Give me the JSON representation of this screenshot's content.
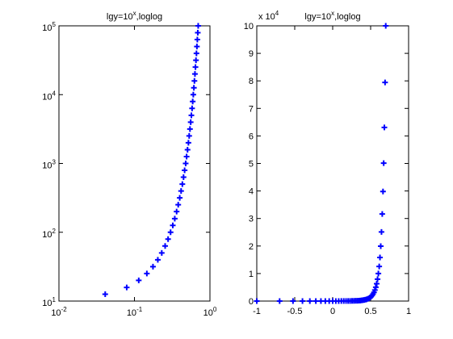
{
  "chart_data": [
    {
      "type": "scatter",
      "title": [
        "lgy=10",
        "x",
        ",loglog"
      ],
      "marker": "+",
      "color": "#0000ff",
      "xscale": "log",
      "yscale": "log",
      "x": [
        0.041,
        0.079,
        0.114,
        0.146,
        0.176,
        0.204,
        0.23,
        0.255,
        0.279,
        0.301,
        0.322,
        0.342,
        0.362,
        0.38,
        0.398,
        0.415,
        0.431,
        0.447,
        0.462,
        0.477,
        0.491,
        0.505,
        0.519,
        0.531,
        0.544,
        0.556,
        0.568,
        0.58,
        0.591,
        0.602,
        0.613,
        0.623,
        0.633,
        0.643,
        0.653,
        0.663,
        0.672,
        0.681,
        0.69,
        0.699
      ],
      "y": [
        12.6,
        15.8,
        20,
        25.1,
        31.6,
        39.8,
        50.1,
        63.1,
        79.4,
        100,
        126,
        158,
        200,
        251,
        316,
        398,
        501,
        631,
        794,
        1000,
        1259,
        1585,
        1995,
        2512,
        3162,
        3981,
        5012,
        6310,
        7943,
        10000,
        12589,
        15849,
        19953,
        25119,
        31623,
        39811,
        50119,
        63096,
        79433,
        100000
      ],
      "xlim": [
        0.01,
        1
      ],
      "ylim": [
        10,
        100000
      ],
      "xticks": [
        {
          "value": 0.01,
          "label": "10",
          "exponent": "-2"
        },
        {
          "value": 0.1,
          "label": "10",
          "exponent": "-1"
        },
        {
          "value": 1,
          "label": "10",
          "exponent": "0"
        }
      ],
      "yticks": [
        {
          "value": 10,
          "label": "10",
          "exponent": "1"
        },
        {
          "value": 100,
          "label": "10",
          "exponent": "2"
        },
        {
          "value": 1000,
          "label": "10",
          "exponent": "3"
        },
        {
          "value": 10000,
          "label": "10",
          "exponent": "4"
        },
        {
          "value": 100000,
          "label": "10",
          "exponent": "5"
        }
      ]
    },
    {
      "type": "scatter",
      "title": [
        "lgy=10",
        "x",
        ",loglog"
      ],
      "marker": "+",
      "color": "#0000ff",
      "xscale": "linear",
      "yscale": "linear",
      "y_multiplier": [
        "x 10",
        "4"
      ],
      "x": [
        -1,
        -0.699,
        -0.523,
        -0.398,
        -0.301,
        -0.222,
        -0.155,
        -0.097,
        -0.046,
        0,
        0.041,
        0.079,
        0.114,
        0.146,
        0.176,
        0.204,
        0.23,
        0.255,
        0.279,
        0.301,
        0.322,
        0.342,
        0.362,
        0.38,
        0.398,
        0.415,
        0.431,
        0.447,
        0.462,
        0.477,
        0.491,
        0.505,
        0.519,
        0.531,
        0.544,
        0.556,
        0.568,
        0.58,
        0.591,
        0.602,
        0.613,
        0.623,
        0.633,
        0.643,
        0.653,
        0.663,
        0.672,
        0.681,
        0.69,
        0.699
      ],
      "y": [
        1.26,
        1.58,
        2,
        2.51,
        3.16,
        3.98,
        5.01,
        6.31,
        7.94,
        10,
        12.6,
        15.8,
        20,
        25.1,
        31.6,
        39.8,
        50.1,
        63.1,
        79.4,
        100,
        126,
        158,
        200,
        251,
        316,
        398,
        501,
        631,
        794,
        1000,
        1259,
        1585,
        1995,
        2512,
        3162,
        3981,
        5012,
        6310,
        7943,
        10000,
        12589,
        15849,
        19953,
        25119,
        31623,
        39811,
        50119,
        63096,
        79433,
        100000
      ],
      "xlim": [
        -1,
        1
      ],
      "ylim": [
        0,
        100000
      ],
      "xticks": [
        -1,
        -0.5,
        0,
        0.5,
        1
      ],
      "yticks": [
        {
          "value": 0,
          "label": "0"
        },
        {
          "value": 10000,
          "label": "1"
        },
        {
          "value": 20000,
          "label": "2"
        },
        {
          "value": 30000,
          "label": "3"
        },
        {
          "value": 40000,
          "label": "4"
        },
        {
          "value": 50000,
          "label": "5"
        },
        {
          "value": 60000,
          "label": "6"
        },
        {
          "value": 70000,
          "label": "7"
        },
        {
          "value": 80000,
          "label": "8"
        },
        {
          "value": 90000,
          "label": "9"
        },
        {
          "value": 100000,
          "label": "10"
        }
      ]
    }
  ]
}
